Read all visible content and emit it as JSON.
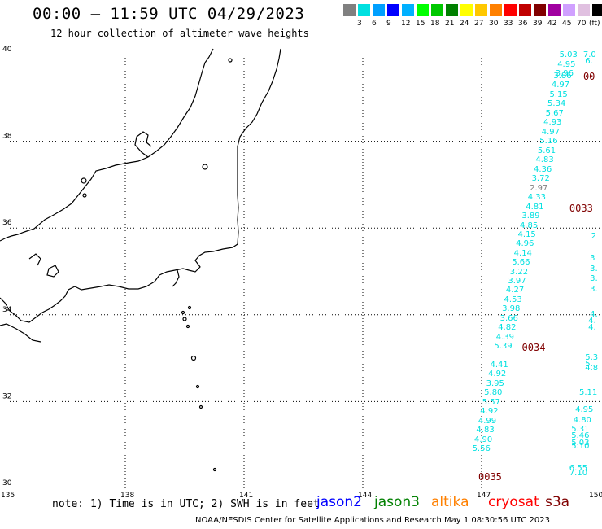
{
  "header": {
    "title": "00:00 – 11:59 UTC 04/29/2023",
    "subtitle": "12 hour collection of altimeter wave heights"
  },
  "color_scale": {
    "unit": "(ft)",
    "swatches": [
      {
        "color": "#808080",
        "label": ""
      },
      {
        "color": "#00e0e0",
        "label": "3"
      },
      {
        "color": "#00a0ff",
        "label": "6"
      },
      {
        "color": "#0000ff",
        "label": "9"
      },
      {
        "color": "#00b0ff",
        "label": "12"
      },
      {
        "color": "#00ff00",
        "label": "15"
      },
      {
        "color": "#00c800",
        "label": "18"
      },
      {
        "color": "#008000",
        "label": "21"
      },
      {
        "color": "#ffff00",
        "label": "24"
      },
      {
        "color": "#ffc800",
        "label": "27"
      },
      {
        "color": "#ff8000",
        "label": "30"
      },
      {
        "color": "#ff0000",
        "label": "33"
      },
      {
        "color": "#c00000",
        "label": "36"
      },
      {
        "color": "#800000",
        "label": "39"
      },
      {
        "color": "#a000a0",
        "label": "42"
      },
      {
        "color": "#d0a0ff",
        "label": "45"
      },
      {
        "color": "#e0c0e0",
        "label": "70"
      },
      {
        "color": "#000000",
        "label": ""
      }
    ]
  },
  "axes": {
    "lat_labels": [
      "40",
      "38",
      "36",
      "34",
      "32",
      "30"
    ],
    "lon_labels": [
      "135",
      "138",
      "141",
      "144",
      "147",
      "150"
    ]
  },
  "colors": {
    "jason3_swh": "#00e0e0",
    "gray_swh": "#808080",
    "time_tag": "#800000"
  },
  "track_a": [
    {
      "v": "5.03",
      "lat": 39.98,
      "lon": 149.15
    },
    {
      "v": "4.95",
      "lat": 39.76,
      "lon": 149.1
    },
    {
      "v": "3.96",
      "lat": 39.55,
      "lon": 149.05
    },
    {
      "v": "3.86",
      "lat": 39.5,
      "lon": 149.0
    },
    {
      "v": "4.97",
      "lat": 39.28,
      "lon": 148.95
    },
    {
      "v": "5.15",
      "lat": 39.06,
      "lon": 148.9
    },
    {
      "v": "5.34",
      "lat": 38.85,
      "lon": 148.85
    },
    {
      "v": "5.67",
      "lat": 38.63,
      "lon": 148.8
    },
    {
      "v": "4.93",
      "lat": 38.42,
      "lon": 148.75
    },
    {
      "v": "4.97",
      "lat": 38.2,
      "lon": 148.7
    },
    {
      "v": "5.16",
      "lat": 37.99,
      "lon": 148.65
    },
    {
      "v": "5.61",
      "lat": 37.77,
      "lon": 148.6
    },
    {
      "v": "4.83",
      "lat": 37.56,
      "lon": 148.55
    },
    {
      "v": "4.36",
      "lat": 37.34,
      "lon": 148.5
    },
    {
      "v": "3.72",
      "lat": 37.13,
      "lon": 148.45
    },
    {
      "v": "2.97",
      "lat": 36.91,
      "lon": 148.4,
      "gray": true
    },
    {
      "v": "4.33",
      "lat": 36.7,
      "lon": 148.35
    },
    {
      "v": "4.81",
      "lat": 36.48,
      "lon": 148.3
    },
    {
      "v": "3.89",
      "lat": 36.27,
      "lon": 148.2
    },
    {
      "v": "4.85",
      "lat": 36.05,
      "lon": 148.15
    },
    {
      "v": "4.15",
      "lat": 35.84,
      "lon": 148.1
    },
    {
      "v": "4.96",
      "lat": 35.62,
      "lon": 148.05
    },
    {
      "v": "4.14",
      "lat": 35.41,
      "lon": 148.0
    },
    {
      "v": "5.66",
      "lat": 35.19,
      "lon": 147.95
    },
    {
      "v": "3.22",
      "lat": 34.98,
      "lon": 147.9
    },
    {
      "v": "3.97",
      "lat": 34.76,
      "lon": 147.85
    },
    {
      "v": "4.27",
      "lat": 34.55,
      "lon": 147.8
    },
    {
      "v": "4.53",
      "lat": 34.33,
      "lon": 147.75
    },
    {
      "v": "3.98",
      "lat": 34.12,
      "lon": 147.7
    },
    {
      "v": "3.66",
      "lat": 33.9,
      "lon": 147.65
    },
    {
      "v": "4.82",
      "lat": 33.69,
      "lon": 147.6
    },
    {
      "v": "4.39",
      "lat": 33.47,
      "lon": 147.55
    },
    {
      "v": "5.39",
      "lat": 33.26,
      "lon": 147.5
    },
    {
      "v": "4.41",
      "lat": 32.83,
      "lon": 147.4
    },
    {
      "v": "4.92",
      "lat": 32.62,
      "lon": 147.35
    },
    {
      "v": "3.95",
      "lat": 32.4,
      "lon": 147.3
    },
    {
      "v": "5.80",
      "lat": 32.19,
      "lon": 147.25
    },
    {
      "v": "5.57",
      "lat": 31.97,
      "lon": 147.2
    },
    {
      "v": "4.92",
      "lat": 31.76,
      "lon": 147.15
    },
    {
      "v": "4.99",
      "lat": 31.54,
      "lon": 147.1
    },
    {
      "v": "4.83",
      "lat": 31.33,
      "lon": 147.05
    },
    {
      "v": "4.90",
      "lat": 31.11,
      "lon": 147.0
    },
    {
      "v": "5.56",
      "lat": 30.9,
      "lon": 146.95
    }
  ],
  "track_b": [
    {
      "v": "7.0",
      "lat": 39.98,
      "lon": 149.75
    },
    {
      "v": "6.",
      "lat": 39.83,
      "lon": 149.8
    },
    {
      "v": "2",
      "lat": 35.8,
      "lon": 149.95
    },
    {
      "v": "3",
      "lat": 35.3,
      "lon": 149.92
    },
    {
      "v": "3.",
      "lat": 35.05,
      "lon": 149.92
    },
    {
      "v": "3.",
      "lat": 34.83,
      "lon": 149.92
    },
    {
      "v": "3.",
      "lat": 34.57,
      "lon": 149.92
    },
    {
      "v": "4.",
      "lat": 34.0,
      "lon": 149.92
    },
    {
      "v": "4.",
      "lat": 33.85,
      "lon": 149.88
    },
    {
      "v": "4.",
      "lat": 33.7,
      "lon": 149.88
    },
    {
      "v": "5.3",
      "lat": 33.0,
      "lon": 149.8
    },
    {
      "v": "5.",
      "lat": 32.86,
      "lon": 149.8
    },
    {
      "v": "4.8",
      "lat": 32.75,
      "lon": 149.8
    },
    {
      "v": "5.11",
      "lat": 32.2,
      "lon": 149.65
    },
    {
      "v": "4.95",
      "lat": 31.8,
      "lon": 149.55
    },
    {
      "v": "4.80",
      "lat": 31.55,
      "lon": 149.5
    },
    {
      "v": "5.31",
      "lat": 31.36,
      "lon": 149.45
    },
    {
      "v": "5.46",
      "lat": 31.2,
      "lon": 149.45
    },
    {
      "v": "5.03",
      "lat": 31.03,
      "lon": 149.45
    },
    {
      "v": "5.10",
      "lat": 30.95,
      "lon": 149.45
    },
    {
      "v": "6.55",
      "lat": 30.45,
      "lon": 149.4
    },
    {
      "v": "7.10",
      "lat": 30.33,
      "lon": 149.4
    }
  ],
  "time_tags": [
    {
      "t": "00",
      "lat": 39.5,
      "lon": 149.65
    },
    {
      "t": "0033",
      "lat": 36.45,
      "lon": 149.3
    },
    {
      "t": "0034",
      "lat": 33.24,
      "lon": 148.1
    },
    {
      "t": "0035",
      "lat": 30.26,
      "lon": 147.0
    }
  ],
  "note": "note: 1) Time is in UTC; 2) SWH is in feet",
  "satellites": [
    {
      "name": "jason2",
      "color": "#0000ff"
    },
    {
      "name": "jason3",
      "color": "#008000"
    },
    {
      "name": "altika",
      "color": "#ff8000"
    },
    {
      "name": "cryosat",
      "color": "#ff0000"
    },
    {
      "name": "s3a",
      "color": "#800000"
    }
  ],
  "footer": "NOAA/NESDIS Center for Satellite Applications and Research    May  1 08:30:56 UTC 2023"
}
